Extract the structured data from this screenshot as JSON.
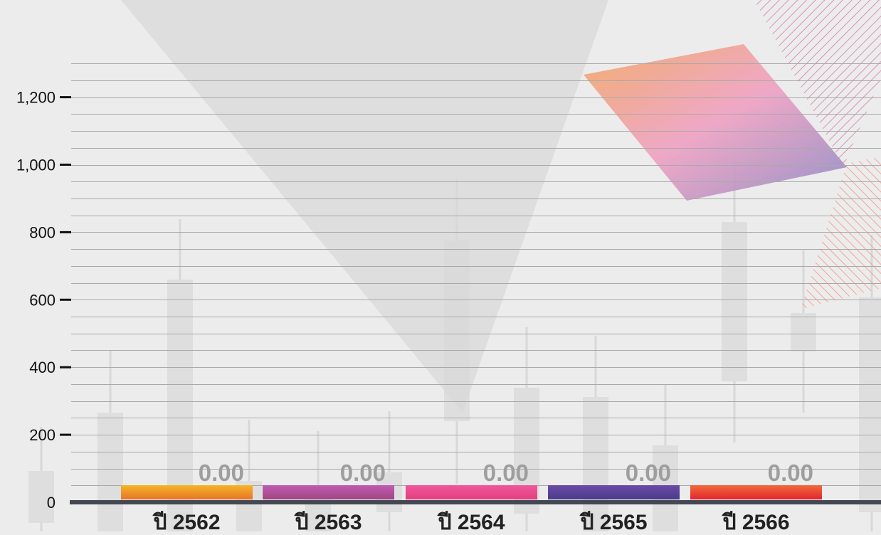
{
  "chart_data": {
    "type": "bar",
    "categories": [
      "ปี 2562",
      "ปี 2563",
      "ปี 2564",
      "ปี 2565",
      "ปี 2566"
    ],
    "values": [
      0,
      0,
      0,
      0,
      0
    ],
    "value_labels": [
      "0.00",
      "0.00",
      "0.00",
      "0.00",
      "0.00"
    ],
    "yticks": [
      "1,200",
      "1,000",
      "800",
      "600",
      "400",
      "200",
      "0"
    ],
    "ytick_values": [
      1200,
      1000,
      800,
      600,
      400,
      200,
      0
    ],
    "ylim": [
      0,
      1280
    ],
    "grid": true,
    "title": "",
    "xlabel": "",
    "ylabel": "",
    "colors": {
      "bar_gradients": [
        [
          "#f4b526",
          "#e8732a"
        ],
        [
          "#c05bb5",
          "#a0467f"
        ],
        [
          "#f0589a",
          "#e23f7e"
        ],
        [
          "#6b4ca6",
          "#4a3a8c"
        ],
        [
          "#f26a3b",
          "#e0262f"
        ]
      ],
      "value_label": "#9e9e9e",
      "axis": "#444852",
      "gridline": "#a9a9a9",
      "tick_label": "#111111",
      "category_label": "#222222"
    }
  }
}
